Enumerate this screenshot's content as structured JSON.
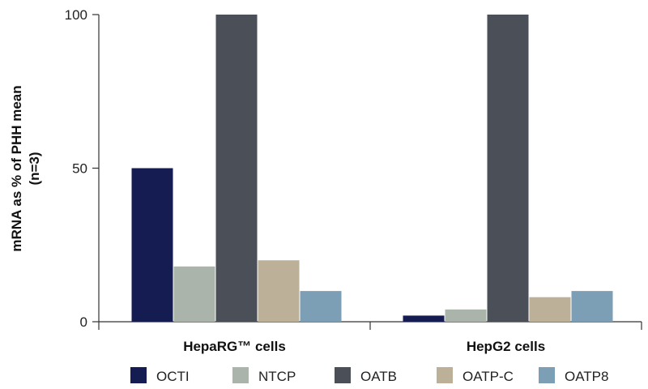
{
  "chart_data": {
    "type": "bar",
    "title": "",
    "xlabel": "",
    "ylabel_lines": [
      "mRNA as % of PHH mean",
      "(n=3)"
    ],
    "categories": [
      "HepaRG™ cells",
      "HepG2 cells"
    ],
    "ylim": [
      0,
      100
    ],
    "yticks": [
      0,
      50,
      100
    ],
    "grid": false,
    "legend_position": "bottom",
    "series": [
      {
        "name": "OCTI",
        "color": "#141c52",
        "values": [
          50,
          2
        ]
      },
      {
        "name": "NTCP",
        "color": "#aab4aa",
        "values": [
          18,
          4
        ]
      },
      {
        "name": "OATB",
        "color": "#4b4f58",
        "values": [
          100,
          100
        ]
      },
      {
        "name": "OATP-C",
        "color": "#bcb098",
        "values": [
          20,
          8
        ]
      },
      {
        "name": "OATP8",
        "color": "#7c9fb5",
        "values": [
          10,
          10
        ]
      }
    ]
  }
}
